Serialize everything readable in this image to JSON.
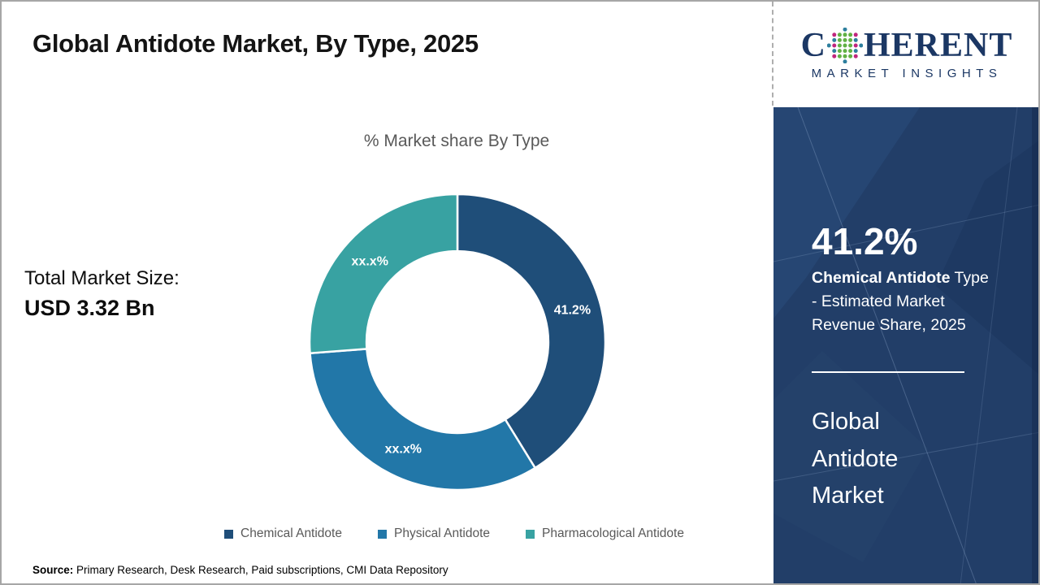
{
  "header": {
    "title": "Global Antidote Market, By Type, 2025"
  },
  "logo": {
    "prefix": "C",
    "suffix": "HERENT",
    "subtitle": "MARKET INSIGHTS",
    "navy": "#1b3764",
    "globe_green": "#62b145",
    "globe_magenta": "#c0267e",
    "globe_teal": "#2d7f9e"
  },
  "main": {
    "total_label": "Total Market Size:",
    "total_value": "USD 3.32 Bn"
  },
  "chart_data": {
    "type": "pie",
    "donut": true,
    "title": "% Market share By Type",
    "categories": [
      "Chemical Antidote",
      "Physical Antidote",
      "Pharmacological Antidote"
    ],
    "values": [
      41.2,
      32.6,
      26.2
    ],
    "value_labels": [
      "41.2%",
      "xx.x%",
      "xx.x%"
    ],
    "colors": [
      "#1f4e79",
      "#2277a8",
      "#38a2a2"
    ],
    "legend_position": "bottom",
    "hole_ratio": 0.615,
    "start_angle_deg": 0,
    "direction": "clockwise"
  },
  "sidebar": {
    "stat_value": "41.2%",
    "stat_desc_bold": "Chemical Antidote",
    "stat_desc_rest": " Type - Estimated Market Revenue Share, 2025",
    "panel_title": "Global Antidote Market",
    "background": "#223e68"
  },
  "footer": {
    "source_label": "Source:",
    "source_text": " Primary Research, Desk Research, Paid subscriptions, CMI Data Repository"
  }
}
